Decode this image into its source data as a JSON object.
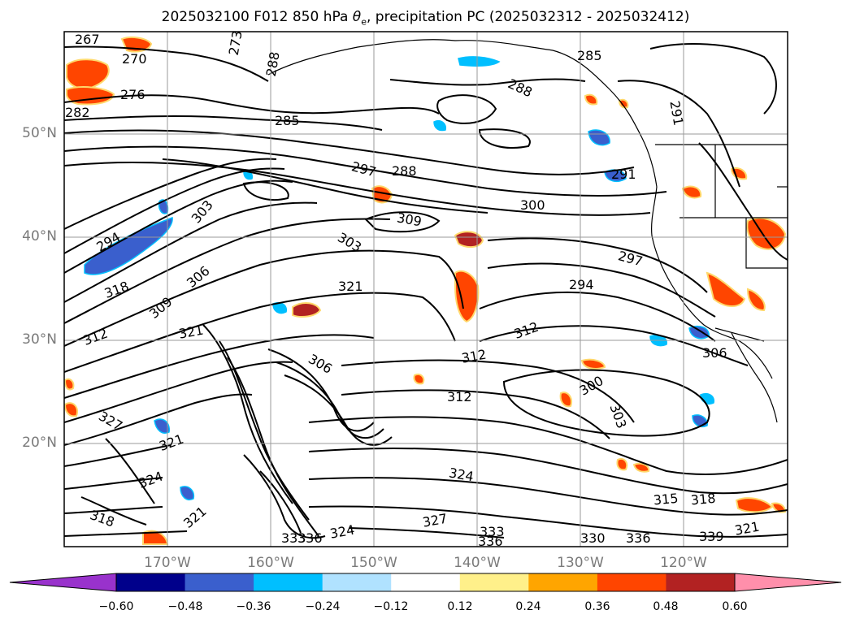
{
  "title_main": "2025032100 F012 850 hPa ",
  "title_sym": "θ",
  "title_sub": "e",
  "title_rest": ", precipitation PC (2025032312 - 2025032412)",
  "lat_labels": [
    "50°N",
    "40°N",
    "30°N",
    "20°N"
  ],
  "lon_labels": [
    "170°W",
    "160°W",
    "150°W",
    "140°W",
    "130°W",
    "120°W"
  ],
  "contour_labels": [
    "267",
    "270",
    "276",
    "282",
    "285",
    "273",
    "288",
    "285",
    "288",
    "291",
    "291",
    "297",
    "288",
    "300",
    "303",
    "294",
    "309",
    "303",
    "306",
    "309",
    "318",
    "321",
    "312",
    "321",
    "297",
    "294",
    "312",
    "312",
    "300",
    "306",
    "303",
    "312",
    "306",
    "327",
    "321",
    "324",
    "318",
    "321",
    "333",
    "336",
    "330",
    "336",
    "339",
    "324",
    "327",
    "333",
    "336",
    "315",
    "318",
    "321"
  ],
  "colorbar": {
    "ticks": [
      "−0.60",
      "−0.48",
      "−0.36",
      "−0.24",
      "−0.12",
      "0.12",
      "0.24",
      "0.36",
      "0.48",
      "0.60"
    ],
    "colors": [
      "#9932cc",
      "#00008b",
      "#3a5fcd",
      "#00bfff",
      "#b0e2ff",
      "#ffffff",
      "#fff08a",
      "#ffa500",
      "#ff4500",
      "#b22222",
      "#ff8fab"
    ]
  },
  "map": {
    "projection": "PlateCarree",
    "lon_range": [
      -180,
      -110
    ],
    "lat_range": [
      10,
      60
    ],
    "gridlines": true
  }
}
